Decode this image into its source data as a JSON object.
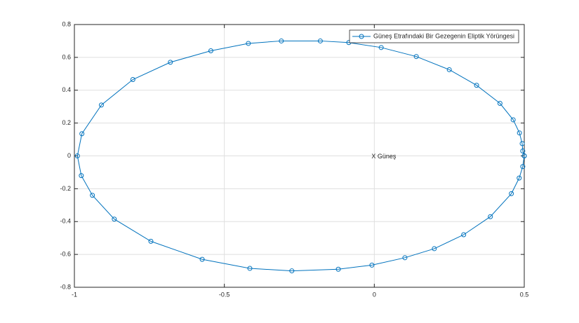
{
  "chart_data": {
    "type": "line",
    "x": [
      0.5,
      0.495,
      0.493,
      0.484,
      0.463,
      0.419,
      0.341,
      0.25,
      0.14,
      0.023,
      -0.085,
      -0.18,
      -0.31,
      -0.42,
      -0.545,
      -0.68,
      -0.805,
      -0.91,
      -0.975,
      -0.99,
      -0.977,
      -0.94,
      -0.867,
      -0.745,
      -0.574,
      -0.415,
      -0.275,
      -0.12,
      -0.008,
      0.102,
      0.2,
      0.298,
      0.387,
      0.457,
      0.483,
      0.495,
      0.5
    ],
    "series": [
      {
        "name": "Güneş Etrafındaki Bir Gezegenin Eliptik Yörüngesi",
        "color": "#0072bd",
        "values": [
          0,
          0.03,
          0.075,
          0.14,
          0.22,
          0.32,
          0.43,
          0.525,
          0.605,
          0.66,
          0.69,
          0.7,
          0.7,
          0.685,
          0.64,
          0.57,
          0.465,
          0.31,
          0.135,
          0,
          -0.12,
          -0.24,
          -0.385,
          -0.52,
          -0.63,
          -0.685,
          -0.7,
          -0.69,
          -0.665,
          -0.62,
          -0.565,
          -0.48,
          -0.37,
          -0.23,
          -0.135,
          -0.065,
          0
        ]
      }
    ],
    "annotation": {
      "text": "X Güneş",
      "x": 0,
      "y": 0
    },
    "xlim": [
      -1,
      0.5
    ],
    "xticks": [
      -1,
      -0.5,
      0,
      0.5
    ],
    "ylim": [
      -0.8,
      0.8
    ],
    "yticks": [
      -0.8,
      -0.6,
      -0.4,
      -0.2,
      0,
      0.2,
      0.4,
      0.6,
      0.8
    ],
    "grid": true,
    "legend": "northeast"
  }
}
